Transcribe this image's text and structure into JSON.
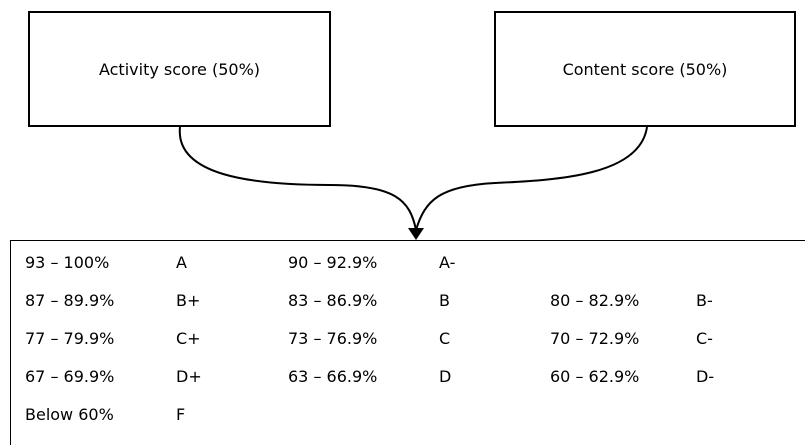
{
  "boxes": {
    "activity": "Activity score (50%)",
    "content": "Content score (50%)"
  },
  "grading_scale": [
    [
      {
        "range": "93 – 100%",
        "grade": "A"
      },
      {
        "range": "90 – 92.9%",
        "grade": "A-"
      },
      {
        "range": "",
        "grade": ""
      }
    ],
    [
      {
        "range": "87 – 89.9%",
        "grade": "B+"
      },
      {
        "range": "83 – 86.9%",
        "grade": "B"
      },
      {
        "range": "80 – 82.9%",
        "grade": "B-"
      }
    ],
    [
      {
        "range": "77 – 79.9%",
        "grade": "C+"
      },
      {
        "range": "73 – 76.9%",
        "grade": "C"
      },
      {
        "range": "70 – 72.9%",
        "grade": "C-"
      }
    ],
    [
      {
        "range": "67 – 69.9%",
        "grade": "D+"
      },
      {
        "range": "63 – 66.9%",
        "grade": "D"
      },
      {
        "range": "60 – 62.9%",
        "grade": "D-"
      }
    ],
    [
      {
        "range": "Below 60%",
        "grade": "F"
      },
      {
        "range": "",
        "grade": ""
      },
      {
        "range": "",
        "grade": ""
      }
    ]
  ]
}
